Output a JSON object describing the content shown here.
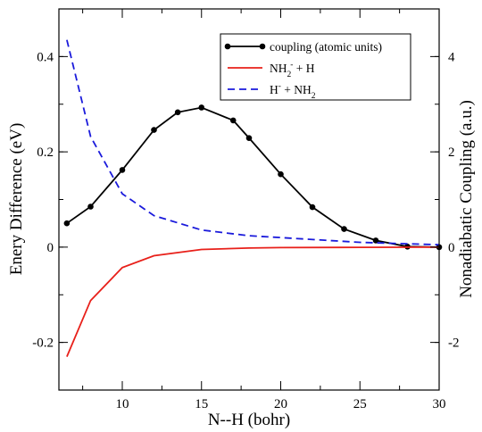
{
  "chart_data": {
    "type": "line",
    "xlabel": "N--H (bohr)",
    "ylabel_left": "Enery Difference (eV)",
    "ylabel_right": "Nonadiabatic Coupling (a.u.)",
    "x_ticks": [
      10,
      15,
      20,
      25,
      30
    ],
    "x_tick_labels": [
      "10",
      "15",
      "20",
      "25",
      "30"
    ],
    "y_left_ticks": [
      -0.2,
      0,
      0.2,
      0.4
    ],
    "y_left_tick_labels": [
      "-0.2",
      "0",
      "0.2",
      "0.4"
    ],
    "y_right_ticks": [
      -2,
      0,
      2,
      4
    ],
    "y_right_tick_labels": [
      "-2",
      "0",
      "2",
      "4"
    ],
    "xlim": [
      6,
      30
    ],
    "ylim_left": [
      -0.3,
      0.5
    ],
    "ylim_right": [
      -3,
      5
    ],
    "grid": false,
    "legend_position": "top-right",
    "colors": {
      "coupling": "#000000",
      "nh2_minus_h": "#e8201a",
      "h_minus_nh2": "#1a1adb"
    },
    "legend": [
      {
        "label": "coupling (atomic units)"
      },
      {
        "base": "NH",
        "sub": "2",
        "sup": "-",
        "rest": " + H"
      },
      {
        "base": "H",
        "sup": "-",
        "rest": " + NH",
        "sub2": "2"
      }
    ],
    "series": [
      {
        "key": "coupling",
        "axis": "right",
        "style": "solid-markers",
        "x": [
          6.5,
          8,
          10,
          12,
          13.5,
          15,
          17,
          18,
          20,
          22,
          24,
          26,
          28,
          30
        ],
        "y": [
          0.5,
          0.85,
          1.62,
          2.46,
          2.83,
          2.93,
          2.66,
          2.29,
          1.53,
          0.84,
          0.38,
          0.14,
          0.01,
          0.0
        ]
      },
      {
        "key": "nh2_minus_h",
        "axis": "left",
        "style": "solid",
        "x": [
          6.5,
          8,
          10,
          12,
          15,
          18,
          20,
          25,
          30
        ],
        "y": [
          -0.23,
          -0.112,
          -0.043,
          -0.018,
          -0.005,
          -0.002,
          -0.001,
          -0.0005,
          0.0
        ]
      },
      {
        "key": "h_minus_nh2",
        "axis": "left",
        "style": "dashed",
        "x": [
          6.5,
          8,
          10,
          12,
          15,
          18,
          20,
          25,
          30
        ],
        "y": [
          0.435,
          0.232,
          0.112,
          0.066,
          0.036,
          0.024,
          0.02,
          0.01,
          0.005
        ]
      }
    ]
  }
}
